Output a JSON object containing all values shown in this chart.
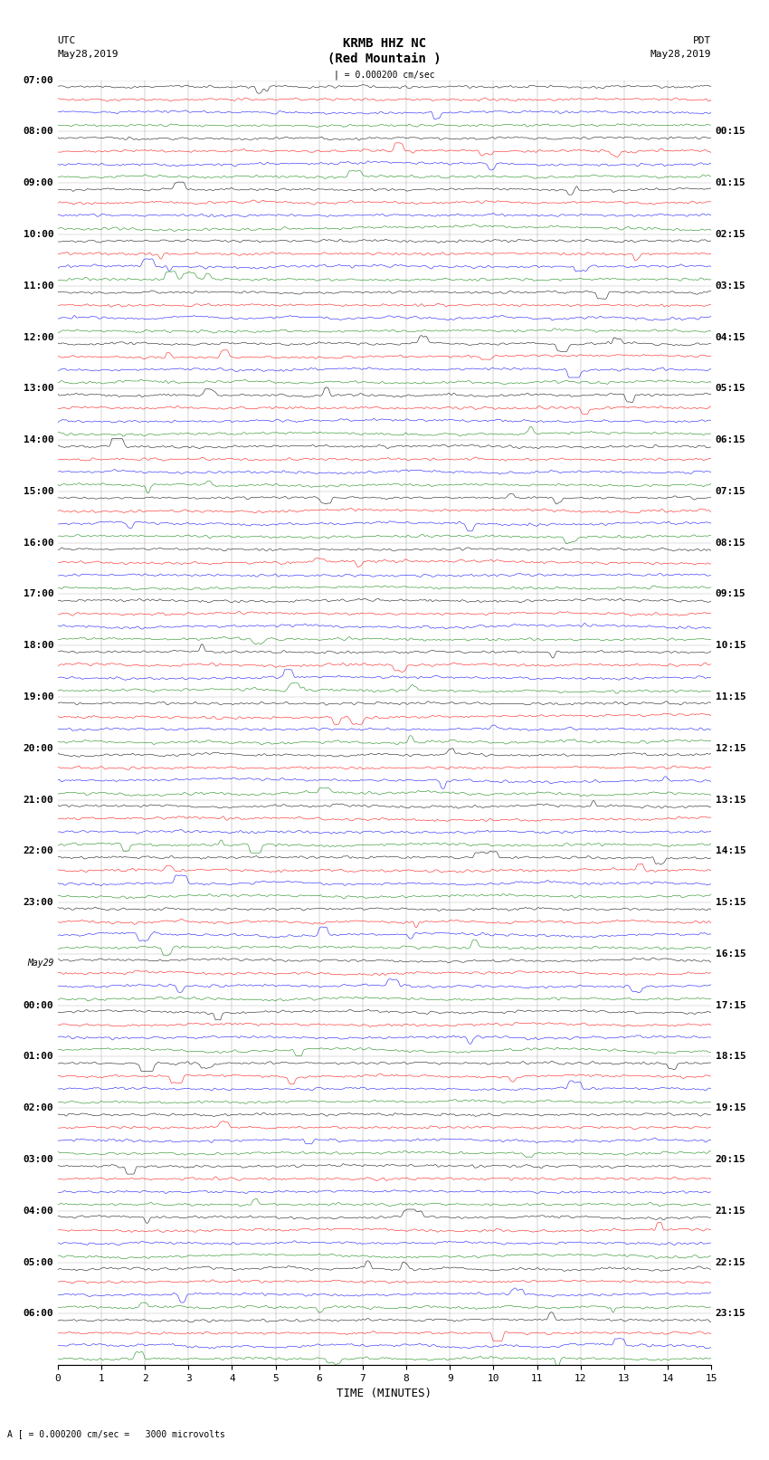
{
  "title_line1": "KRMB HHZ NC",
  "title_line2": "(Red Mountain )",
  "scale_label": "| = 0.000200 cm/sec",
  "left_label_top": "UTC",
  "left_label_date": "May28,2019",
  "right_label_top": "PDT",
  "right_label_date": "May28,2019",
  "bottom_label": "TIME (MINUTES)",
  "scale_note": "A [ = 0.000200 cm/sec =   3000 microvolts",
  "xlabel_ticks": [
    0,
    1,
    2,
    3,
    4,
    5,
    6,
    7,
    8,
    9,
    10,
    11,
    12,
    13,
    14,
    15
  ],
  "trace_colors": [
    "black",
    "red",
    "blue",
    "green"
  ],
  "left_times": [
    "07:00",
    "08:00",
    "09:00",
    "10:00",
    "11:00",
    "12:00",
    "13:00",
    "14:00",
    "15:00",
    "16:00",
    "17:00",
    "18:00",
    "19:00",
    "20:00",
    "21:00",
    "22:00",
    "23:00",
    "May29",
    "00:00",
    "01:00",
    "02:00",
    "03:00",
    "04:00",
    "05:00",
    "06:00"
  ],
  "right_times": [
    "00:15",
    "01:15",
    "02:15",
    "03:15",
    "04:15",
    "05:15",
    "06:15",
    "07:15",
    "08:15",
    "09:15",
    "10:15",
    "11:15",
    "12:15",
    "13:15",
    "14:15",
    "15:15",
    "16:15",
    "17:15",
    "18:15",
    "19:15",
    "20:15",
    "21:15",
    "22:15",
    "23:15"
  ],
  "n_rows": 25,
  "traces_per_row": 4,
  "n_samples": 900,
  "bg_color": "white",
  "trace_amplitude": 0.35,
  "noise_seed": 42
}
